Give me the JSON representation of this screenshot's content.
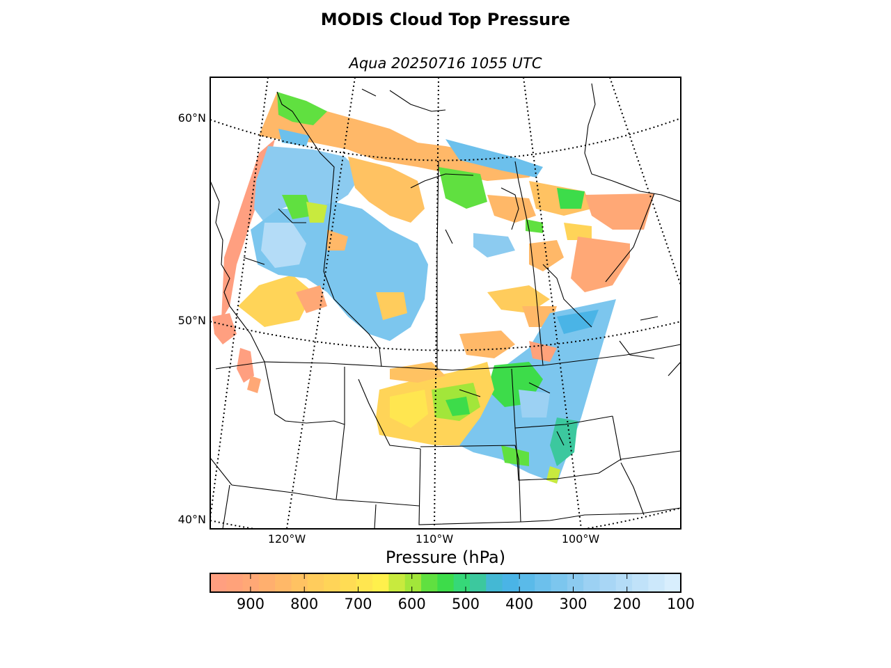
{
  "title": "MODIS Cloud Top Pressure",
  "subtitle": "Aqua 20250716 1055 UTC",
  "lat_labels": [
    "60°N",
    "50°N",
    "40°N"
  ],
  "lon_labels": [
    "120°W",
    "110°W",
    "100°W"
  ],
  "colorbar": {
    "title": "Pressure (hPa)",
    "ticks": [
      "900",
      "800",
      "700",
      "600",
      "500",
      "400",
      "300",
      "200",
      "100"
    ],
    "min": 975,
    "max": 100,
    "colors": [
      "#ff9f80",
      "#ffa27a",
      "#ffa876",
      "#ffaf6e",
      "#ffb868",
      "#ffc262",
      "#ffcc5c",
      "#ffd458",
      "#ffdc54",
      "#ffe650",
      "#fff04c",
      "#c8ea3e",
      "#a2e63a",
      "#60e040",
      "#3ddc4a",
      "#36d878",
      "#3cc89e",
      "#44b8d4",
      "#4ab4e6",
      "#5abae9",
      "#6cc0ec",
      "#7cc6ee",
      "#8ccbf0",
      "#9cd1f3",
      "#a8d6f5",
      "#b4dcf7",
      "#c0e2f9",
      "#cce8fb",
      "#d8eefd"
    ]
  },
  "map": {
    "region": "Western Canada and northern Great Plains",
    "graticule_lats": [
      40,
      50,
      60
    ],
    "graticule_lons": [
      -130,
      -120,
      -110,
      -100,
      -90
    ]
  }
}
